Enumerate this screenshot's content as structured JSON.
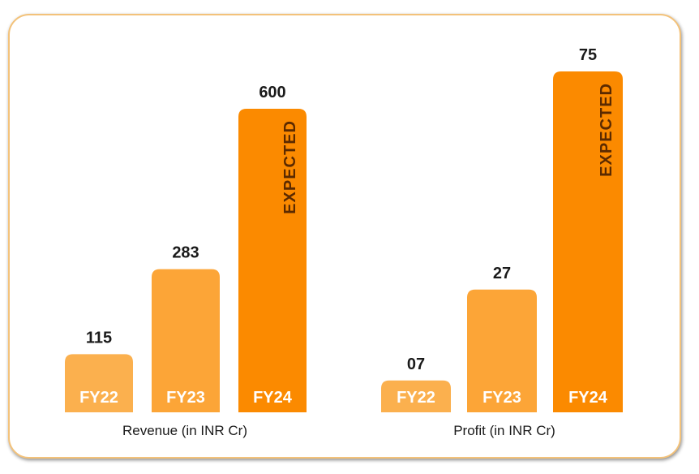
{
  "chart_data": [
    {
      "type": "bar",
      "xlabel": "Revenue (in INR Cr)",
      "categories": [
        "FY22",
        "FY23",
        "FY24"
      ],
      "values": [
        115,
        283,
        600
      ],
      "value_labels": [
        "115",
        "283",
        "600"
      ],
      "bar_notes": [
        "",
        "",
        "EXPECTED"
      ],
      "colors": [
        "#fbb04e",
        "#fca537",
        "#fb8a00"
      ]
    },
    {
      "type": "bar",
      "xlabel": "Profit (in INR Cr)",
      "categories": [
        "FY22",
        "FY23",
        "FY24"
      ],
      "values": [
        7,
        27,
        75
      ],
      "value_labels": [
        "07",
        "27",
        "75"
      ],
      "bar_notes": [
        "",
        "",
        "EXPECTED"
      ],
      "colors": [
        "#fbb04e",
        "#fca537",
        "#fb8a00"
      ]
    }
  ]
}
